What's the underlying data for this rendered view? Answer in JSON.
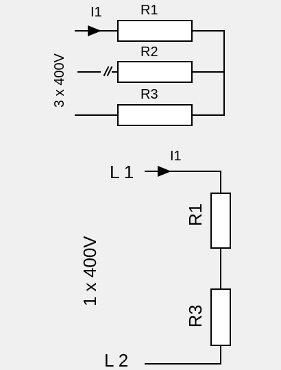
{
  "top": {
    "voltage": "3 x 400V",
    "current": "I1",
    "resistors": [
      "R1",
      "R2",
      "R3"
    ]
  },
  "bottom": {
    "voltage": "1 x 400V",
    "current": "I1",
    "terminals": [
      "L 1",
      "L 2"
    ],
    "resistors": [
      "R1",
      "R3"
    ]
  },
  "colors": {
    "background": "#f0f0f0",
    "line": "#000000",
    "resistor_fill": "#ffffff"
  }
}
